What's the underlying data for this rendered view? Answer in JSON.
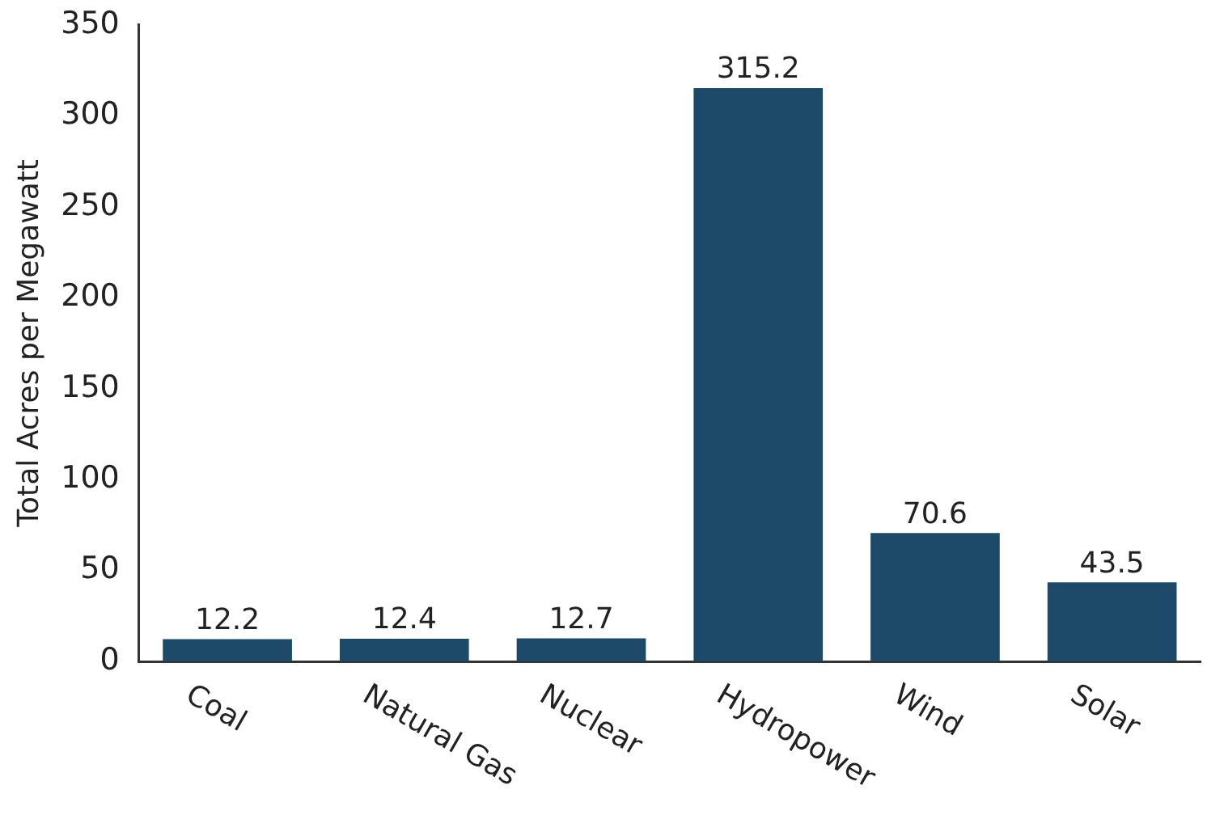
{
  "chart_data": {
    "type": "bar",
    "ylabel": "Total Acres per Megawatt",
    "categories": [
      "Coal",
      "Natural Gas",
      "Nuclear",
      "Hydropower",
      "Wind",
      "Solar"
    ],
    "values": [
      12.2,
      12.4,
      12.7,
      315.2,
      70.6,
      43.5
    ],
    "color": "#1d4a68",
    "ylim": [
      0,
      350
    ],
    "yticks": [
      0,
      50,
      100,
      150,
      200,
      250,
      300,
      350
    ],
    "grid": false,
    "legend": false,
    "data_labels": true
  }
}
